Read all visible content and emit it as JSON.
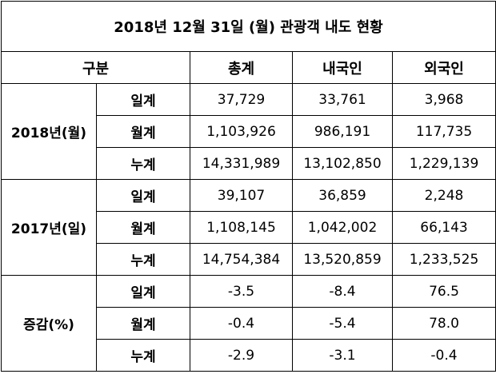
{
  "title": "2018년 12월 31일 (월) 관광객 내도 현황",
  "header": [
    "구분",
    "총계",
    "내국인",
    "외국인"
  ],
  "groups": [
    {
      "label": "2018년(월)",
      "rows": [
        {
          "label": "일계",
          "values": [
            "37,729",
            "33,761",
            "3,968"
          ]
        },
        {
          "label": "월계",
          "values": [
            "1,103,926",
            "986,191",
            "117,735"
          ]
        },
        {
          "label": "누계",
          "values": [
            "14,331,989",
            "13,102,850",
            "1,229,139"
          ]
        }
      ]
    },
    {
      "label": "2017년(일)",
      "rows": [
        {
          "label": "일계",
          "values": [
            "39,107",
            "36,859",
            "2,248"
          ]
        },
        {
          "label": "월계",
          "values": [
            "1,108,145",
            "1,042,002",
            "66,143"
          ]
        },
        {
          "label": "누계",
          "values": [
            "14,754,384",
            "13,520,859",
            "1,233,525"
          ]
        }
      ]
    },
    {
      "label": "증감(%)",
      "rows": [
        {
          "label": "일계",
          "values": [
            "-3.5",
            "-8.4",
            "76.5"
          ]
        },
        {
          "label": "월계",
          "values": [
            "-0.4",
            "-5.4",
            "78.0"
          ]
        },
        {
          "label": "누계",
          "values": [
            "-2.9",
            "-3.1",
            "-0.4"
          ]
        }
      ]
    }
  ]
}
